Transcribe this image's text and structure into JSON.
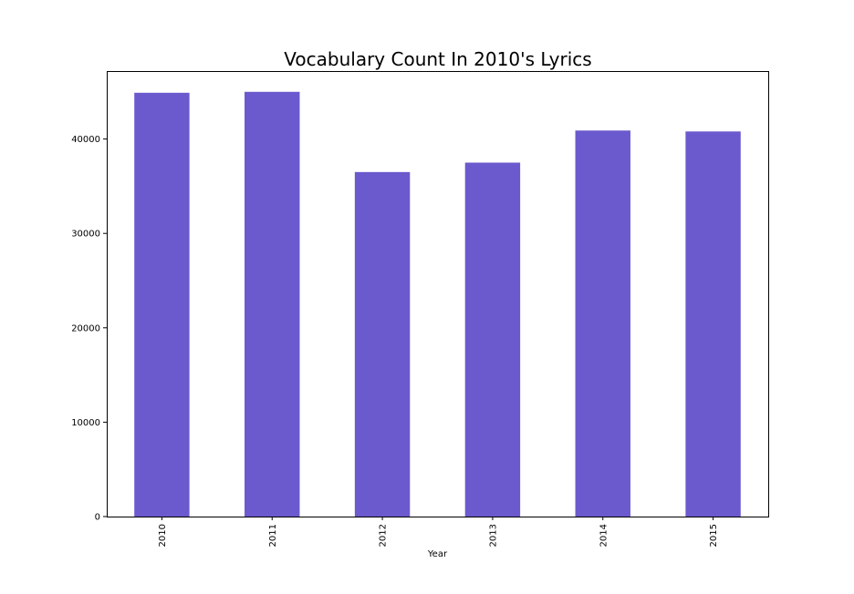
{
  "chart_data": {
    "type": "bar",
    "title": "Vocabulary Count In 2010's Lyrics",
    "xlabel": "Year",
    "ylabel": "",
    "categories": [
      "2010",
      "2011",
      "2012",
      "2013",
      "2014",
      "2015"
    ],
    "values": [
      44900,
      45000,
      36500,
      37500,
      40900,
      40800
    ],
    "ylim": [
      0,
      47200
    ],
    "yticks": [
      0,
      10000,
      20000,
      30000,
      40000
    ],
    "ytick_labels": [
      "0",
      "10000",
      "20000",
      "30000",
      "40000"
    ],
    "bar_color": "#6a5acd",
    "grid": false,
    "legend": "none",
    "xtick_rotation": "vertical"
  }
}
